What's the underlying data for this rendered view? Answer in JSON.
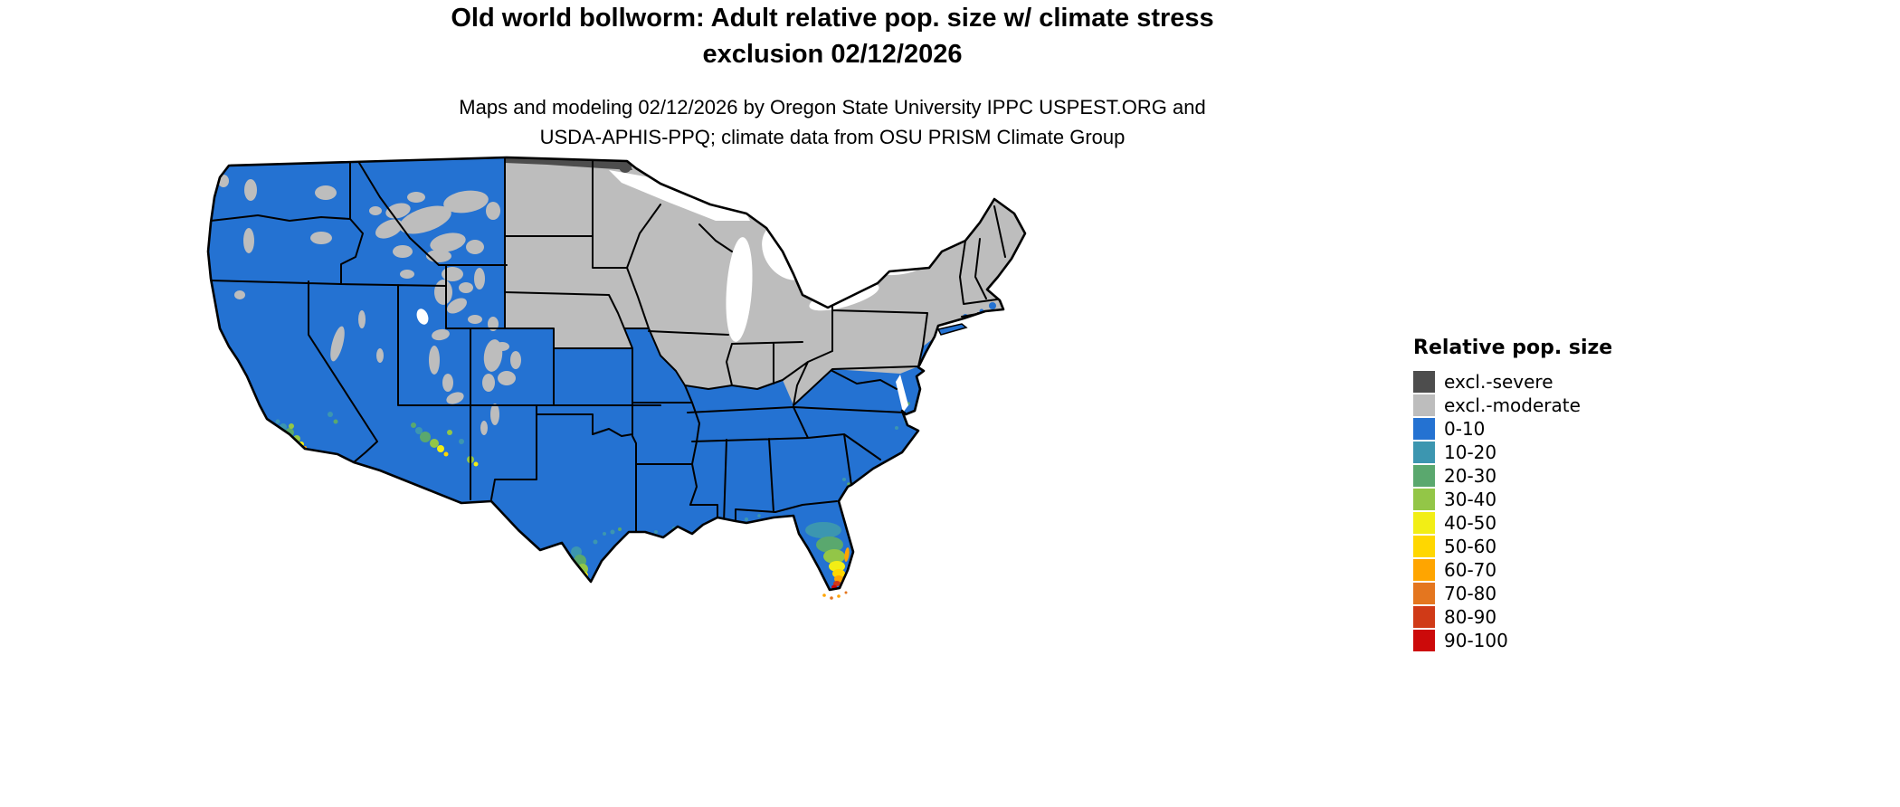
{
  "title": {
    "line1": "Old world bollworm: Adult relative pop. size w/ climate stress",
    "line2": "exclusion 02/12/2026"
  },
  "subtitle": {
    "line1": "Maps and modeling 02/12/2026 by Oregon State University IPPC USPEST.ORG and",
    "line2": "USDA-APHIS-PPQ; climate data from OSU PRISM Climate Group"
  },
  "legend": {
    "title": "Relative pop. size",
    "items": [
      {
        "key": "severe",
        "label": "excl.-severe",
        "color": "#4d4d4d"
      },
      {
        "key": "moderate",
        "label": "excl.-moderate",
        "color": "#bdbdbd"
      },
      {
        "key": "b0010",
        "label": "0-10",
        "color": "#2472d2"
      },
      {
        "key": "b1020",
        "label": "10-20",
        "color": "#3c96b0"
      },
      {
        "key": "b2030",
        "label": "20-30",
        "color": "#5aa86e"
      },
      {
        "key": "b3040",
        "label": "30-40",
        "color": "#93c647"
      },
      {
        "key": "b4050",
        "label": "40-50",
        "color": "#f2ee15"
      },
      {
        "key": "b5060",
        "label": "50-60",
        "color": "#ffd700"
      },
      {
        "key": "b6070",
        "label": "60-70",
        "color": "#ffa500"
      },
      {
        "key": "b7080",
        "label": "70-80",
        "color": "#e4761f"
      },
      {
        "key": "b8090",
        "label": "80-90",
        "color": "#d03a17"
      },
      {
        "key": "b90100",
        "label": "90-100",
        "color": "#cc0a0a"
      }
    ]
  },
  "map": {
    "region": "Contiguous United States",
    "dominant_class": "0-10",
    "excl_moderate_areas": "Northern Plains, Upper Midwest, Great Lakes states, Northeast, Rocky Mountain highlands",
    "excl_severe_areas": "Northern border strip of North Dakota and western Minnesota",
    "hotspot_areas": "Southern California coast, central and southern Arizona, southern Texas, southern Florida"
  }
}
